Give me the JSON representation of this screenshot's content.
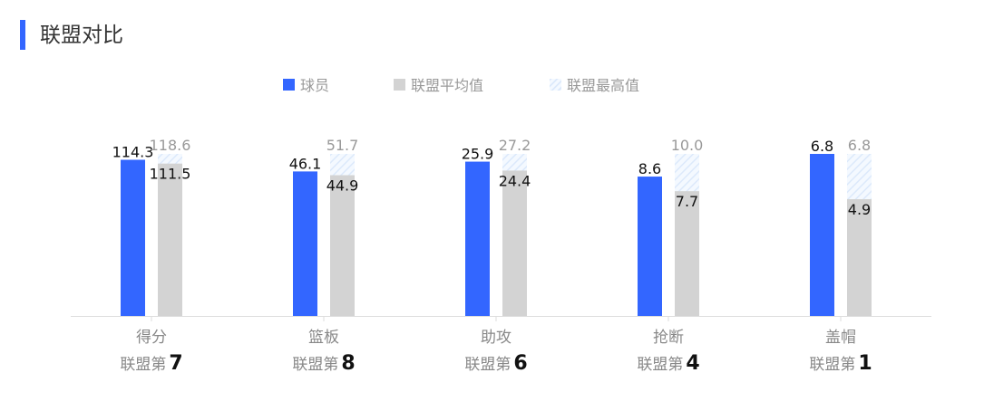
{
  "header": {
    "title": "联盟对比"
  },
  "legend": {
    "player": "球员",
    "avg": "联盟平均值",
    "max": "联盟最高值"
  },
  "colors": {
    "player": "#3366ff",
    "avg": "#d3d3d3",
    "max": "#dce9fb"
  },
  "rank_prefix": "联盟第",
  "chart_data": {
    "type": "bar",
    "categories": [
      "得分",
      "篮板",
      "助攻",
      "抢断",
      "盖帽"
    ],
    "series": [
      {
        "name": "球员",
        "values": [
          114.3,
          46.1,
          25.9,
          8.6,
          6.8
        ]
      },
      {
        "name": "联盟平均值",
        "values": [
          111.5,
          44.9,
          24.4,
          7.7,
          4.9
        ]
      },
      {
        "name": "联盟最高值",
        "values": [
          118.6,
          51.7,
          27.2,
          10.0,
          6.8
        ]
      }
    ],
    "ranks": [
      7,
      8,
      6,
      4,
      1
    ],
    "grid": false,
    "legend_position": "top-center"
  }
}
